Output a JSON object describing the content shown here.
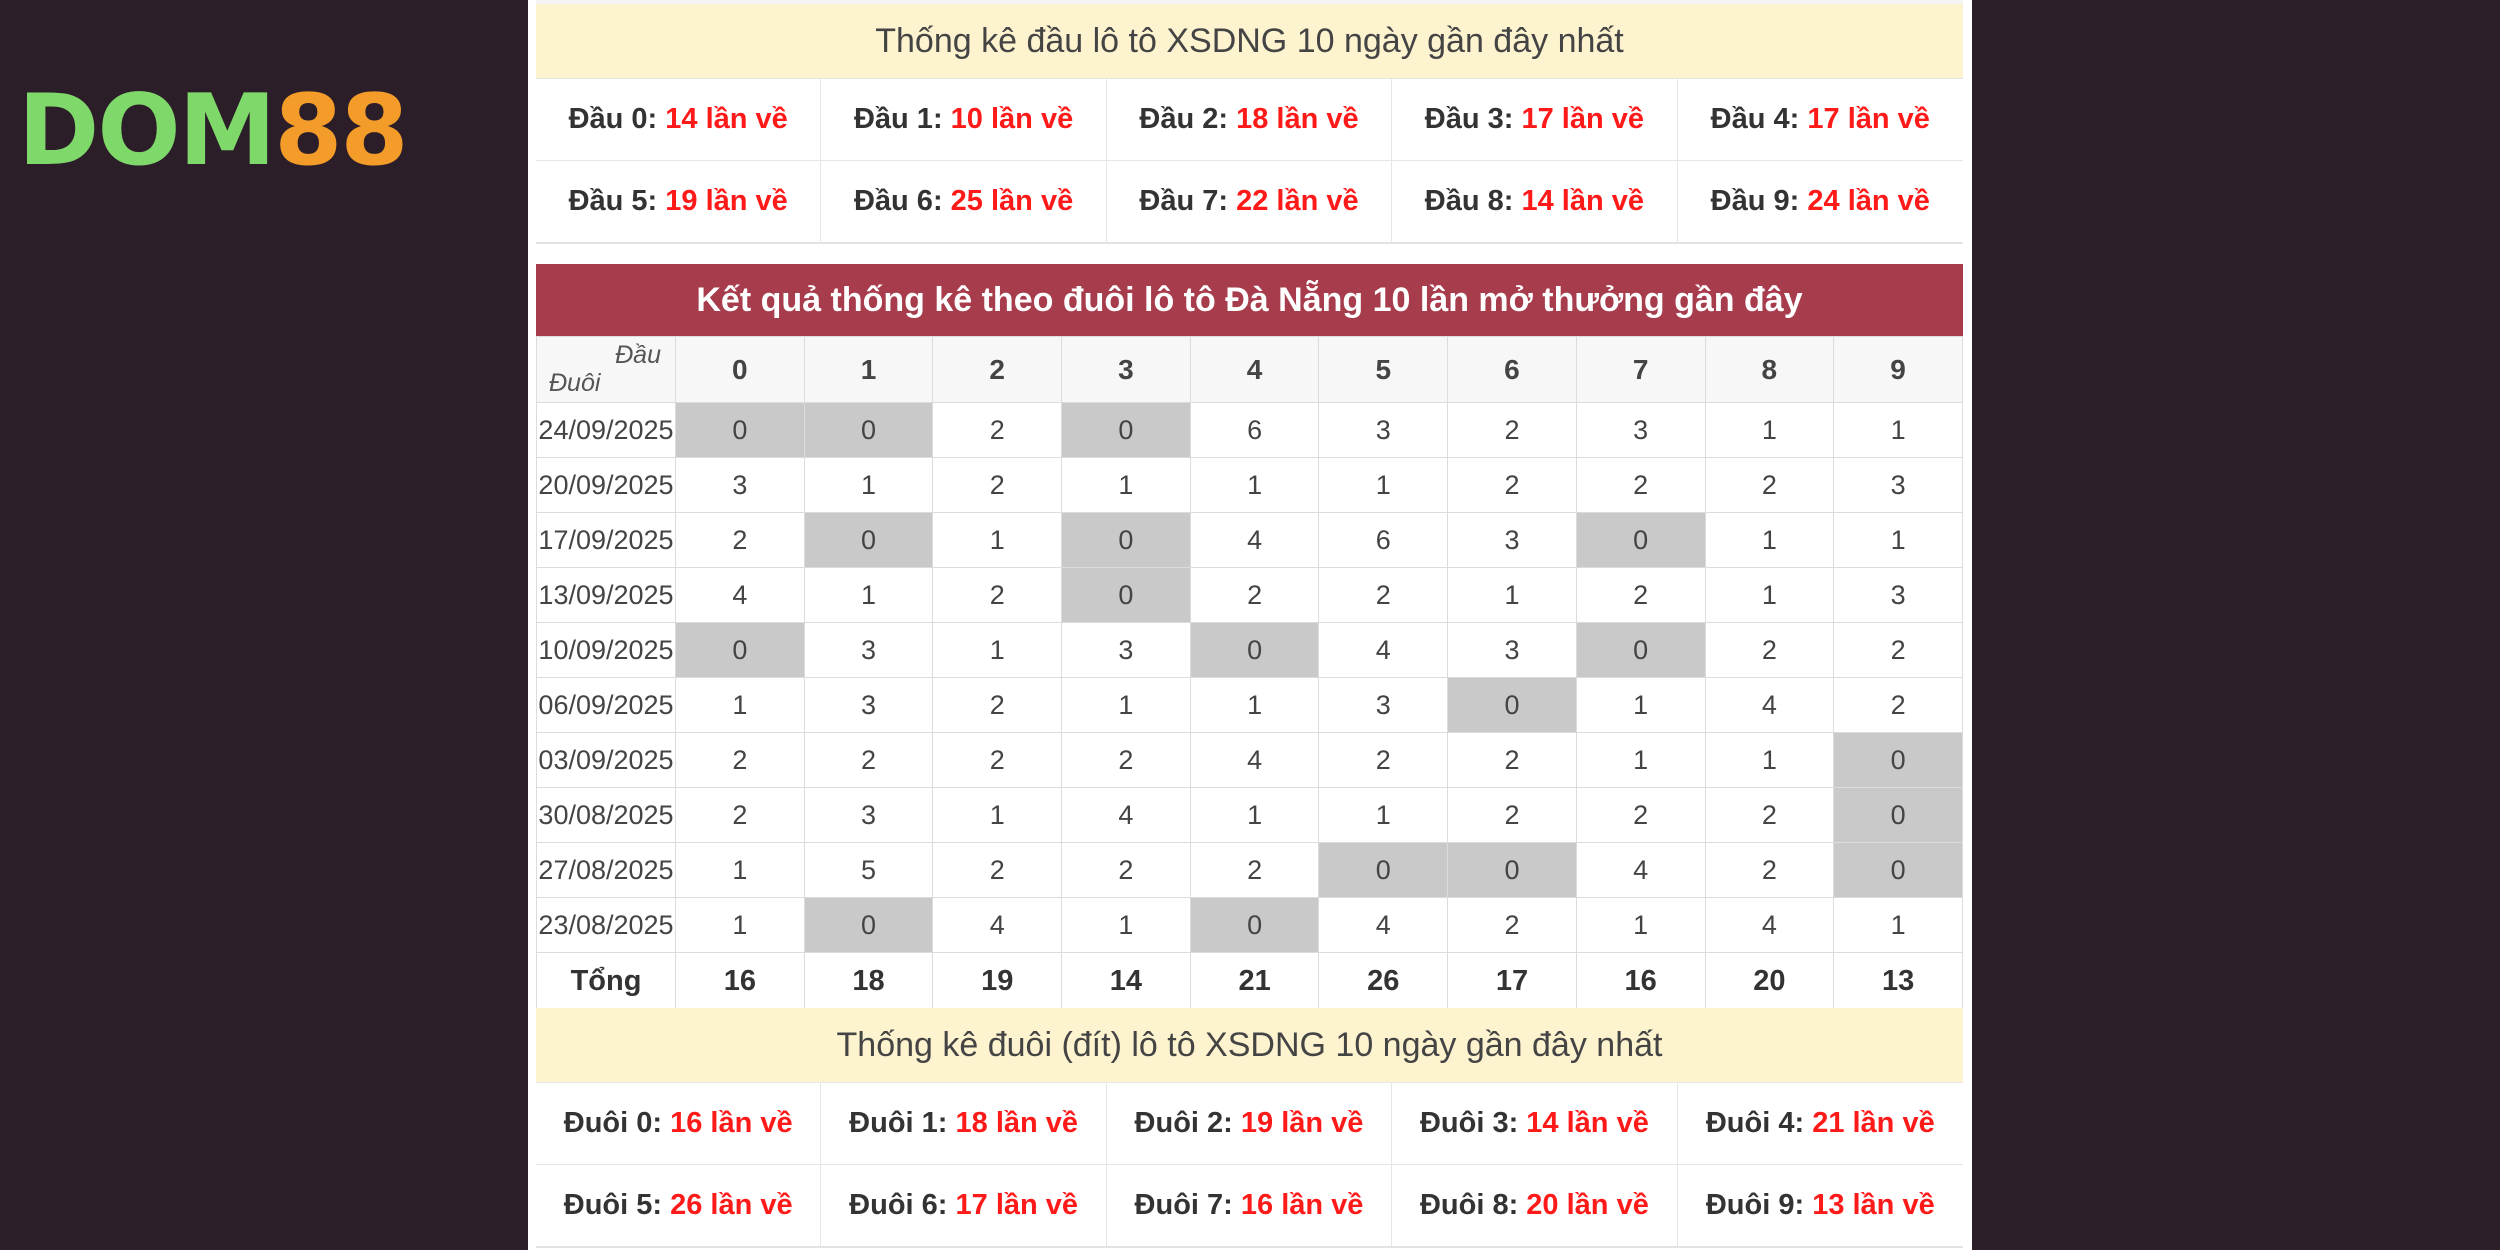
{
  "logo": {
    "part1": "DOM",
    "part2": "88"
  },
  "head_stats": {
    "title": "Thống kê đầu lô tô XSDNG 10 ngày gần đây nhất",
    "items": [
      {
        "label": "Đầu 0:",
        "value": "14 lần về"
      },
      {
        "label": "Đầu 1:",
        "value": "10 lần về"
      },
      {
        "label": "Đầu 2:",
        "value": "18 lần về"
      },
      {
        "label": "Đầu 3:",
        "value": "17 lần về"
      },
      {
        "label": "Đầu 4:",
        "value": "17 lần về"
      },
      {
        "label": "Đầu 5:",
        "value": "19 lần về"
      },
      {
        "label": "Đầu 6:",
        "value": "25 lần về"
      },
      {
        "label": "Đầu 7:",
        "value": "22 lần về"
      },
      {
        "label": "Đầu 8:",
        "value": "14 lần về"
      },
      {
        "label": "Đầu 9:",
        "value": "24 lần về"
      }
    ]
  },
  "table": {
    "title": "Kết quả thống kê theo đuôi lô tô Đà Nẵng 10 lần mở thưởng gần đây",
    "corner_top": "Đầu",
    "corner_bottom": "Đuôi",
    "columns": [
      "0",
      "1",
      "2",
      "3",
      "4",
      "5",
      "6",
      "7",
      "8",
      "9"
    ],
    "rows": [
      {
        "date": "24/09/2025",
        "values": [
          "0",
          "0",
          "2",
          "0",
          "6",
          "3",
          "2",
          "3",
          "1",
          "1"
        ]
      },
      {
        "date": "20/09/2025",
        "values": [
          "3",
          "1",
          "2",
          "1",
          "1",
          "1",
          "2",
          "2",
          "2",
          "3"
        ]
      },
      {
        "date": "17/09/2025",
        "values": [
          "2",
          "0",
          "1",
          "0",
          "4",
          "6",
          "3",
          "0",
          "1",
          "1"
        ]
      },
      {
        "date": "13/09/2025",
        "values": [
          "4",
          "1",
          "2",
          "0",
          "2",
          "2",
          "1",
          "2",
          "1",
          "3"
        ]
      },
      {
        "date": "10/09/2025",
        "values": [
          "0",
          "3",
          "1",
          "3",
          "0",
          "4",
          "3",
          "0",
          "2",
          "2"
        ]
      },
      {
        "date": "06/09/2025",
        "values": [
          "1",
          "3",
          "2",
          "1",
          "1",
          "3",
          "0",
          "1",
          "4",
          "2"
        ]
      },
      {
        "date": "03/09/2025",
        "values": [
          "2",
          "2",
          "2",
          "2",
          "4",
          "2",
          "2",
          "1",
          "1",
          "0"
        ]
      },
      {
        "date": "30/08/2025",
        "values": [
          "2",
          "3",
          "1",
          "4",
          "1",
          "1",
          "2",
          "2",
          "2",
          "0"
        ]
      },
      {
        "date": "27/08/2025",
        "values": [
          "1",
          "5",
          "2",
          "2",
          "2",
          "0",
          "0",
          "4",
          "2",
          "0"
        ]
      },
      {
        "date": "23/08/2025",
        "values": [
          "1",
          "0",
          "4",
          "1",
          "0",
          "4",
          "2",
          "1",
          "4",
          "1"
        ]
      }
    ],
    "total_label": "Tổng",
    "totals": [
      "16",
      "18",
      "19",
      "14",
      "21",
      "26",
      "17",
      "16",
      "20",
      "13"
    ]
  },
  "tail_stats": {
    "title": "Thống kê đuôi (đít) lô tô XSDNG 10 ngày gần đây nhất",
    "items": [
      {
        "label": "Đuôi 0:",
        "value": "16 lần về"
      },
      {
        "label": "Đuôi 1:",
        "value": "18 lần về"
      },
      {
        "label": "Đuôi 2:",
        "value": "19 lần về"
      },
      {
        "label": "Đuôi 3:",
        "value": "14 lần về"
      },
      {
        "label": "Đuôi 4:",
        "value": "21 lần về"
      },
      {
        "label": "Đuôi 5:",
        "value": "26 lần về"
      },
      {
        "label": "Đuôi 6:",
        "value": "17 lần về"
      },
      {
        "label": "Đuôi 7:",
        "value": "16 lần về"
      },
      {
        "label": "Đuôi 8:",
        "value": "20 lần về"
      },
      {
        "label": "Đuôi 9:",
        "value": "13 lần về"
      }
    ]
  },
  "colors": {
    "background": "#2b1e28",
    "header_bar": "#a73c4c",
    "highlight": "#ff1a1a",
    "zero_cell": "#c9c9c9",
    "stat_title_bg": "#fdf3cf"
  }
}
